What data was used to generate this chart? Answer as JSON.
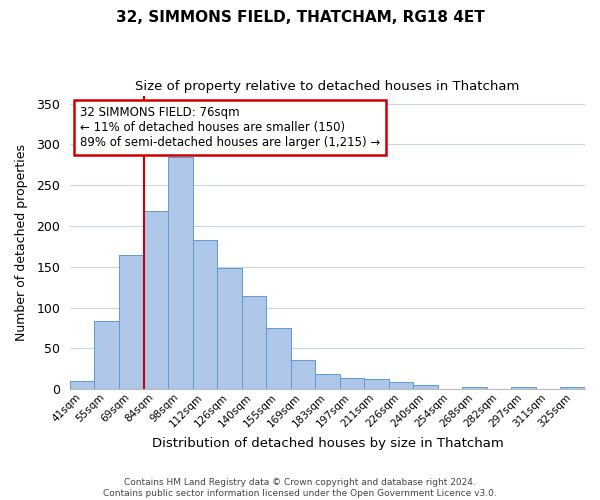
{
  "title": "32, SIMMONS FIELD, THATCHAM, RG18 4ET",
  "subtitle": "Size of property relative to detached houses in Thatcham",
  "xlabel": "Distribution of detached houses by size in Thatcham",
  "ylabel": "Number of detached properties",
  "bar_labels": [
    "41sqm",
    "55sqm",
    "69sqm",
    "84sqm",
    "98sqm",
    "112sqm",
    "126sqm",
    "140sqm",
    "155sqm",
    "169sqm",
    "183sqm",
    "197sqm",
    "211sqm",
    "226sqm",
    "240sqm",
    "254sqm",
    "268sqm",
    "282sqm",
    "297sqm",
    "311sqm",
    "325sqm"
  ],
  "bar_values": [
    10,
    84,
    165,
    218,
    285,
    183,
    149,
    114,
    75,
    36,
    18,
    13,
    12,
    9,
    5,
    0,
    2,
    0,
    3,
    0,
    3
  ],
  "bar_color": "#aec6e8",
  "bar_edgecolor": "#5b9bd5",
  "ylim": [
    0,
    360
  ],
  "yticks": [
    0,
    50,
    100,
    150,
    200,
    250,
    300,
    350
  ],
  "annotation_title": "32 SIMMONS FIELD: 76sqm",
  "annotation_line1": "← 11% of detached houses are smaller (150)",
  "annotation_line2": "89% of semi-detached houses are larger (1,215) →",
  "annotation_box_color": "#ffffff",
  "annotation_box_edgecolor": "#cc0000",
  "red_line_color": "#cc0000",
  "footer1": "Contains HM Land Registry data © Crown copyright and database right 2024.",
  "footer2": "Contains public sector information licensed under the Open Government Licence v3.0.",
  "bg_color": "#ffffff",
  "grid_color": "#c8d4e8"
}
